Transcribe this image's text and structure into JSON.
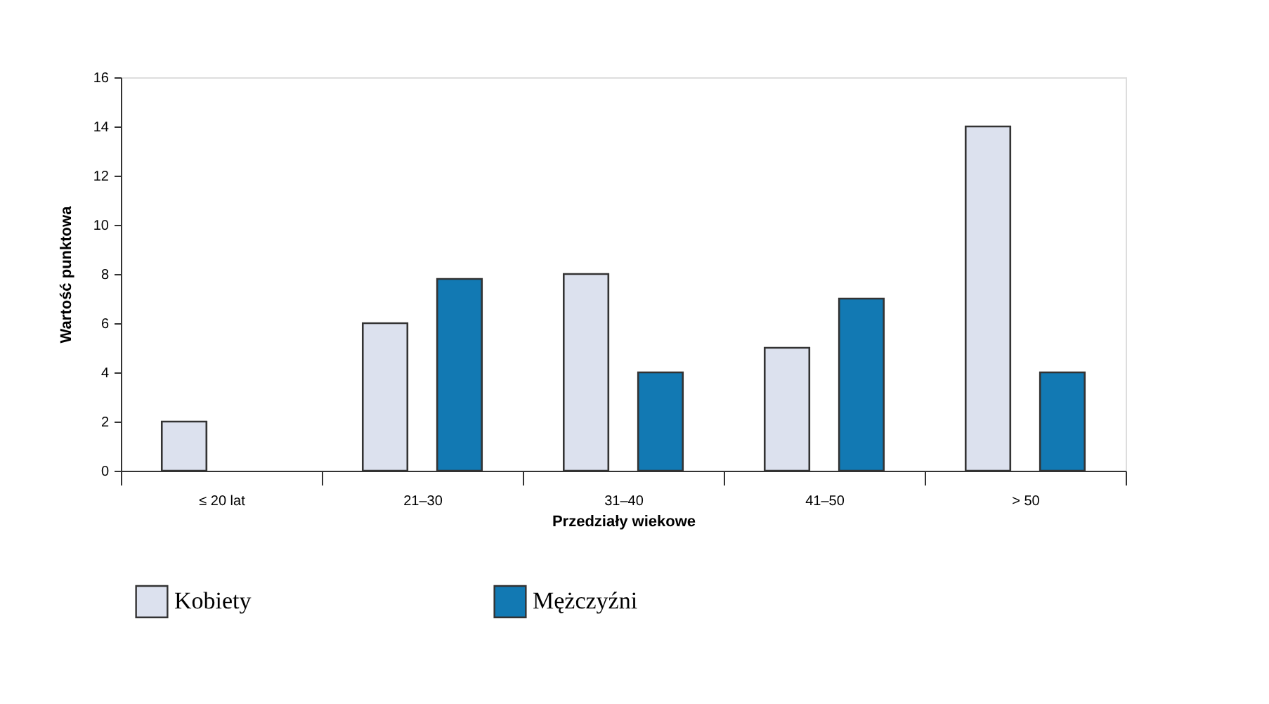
{
  "chart_data": {
    "type": "bar",
    "xlabel": "Przedziały wiekowe",
    "ylabel": "Wartość punktowa",
    "categories": [
      "≤ 20 lat",
      "21–30",
      "31–40",
      "41–50",
      "> 50"
    ],
    "series": [
      {
        "name": "Kobiety",
        "color": "#dce1ee",
        "values": [
          2,
          6,
          8,
          5,
          14
        ]
      },
      {
        "name": "Mężczyźni",
        "color": "#1279b3",
        "values": [
          null,
          7.8,
          4,
          7,
          4
        ]
      }
    ],
    "ylim": [
      0,
      16
    ],
    "yticks": [
      0,
      2,
      4,
      6,
      8,
      10,
      12,
      14,
      16
    ],
    "grid": false,
    "legend": "bottom"
  }
}
